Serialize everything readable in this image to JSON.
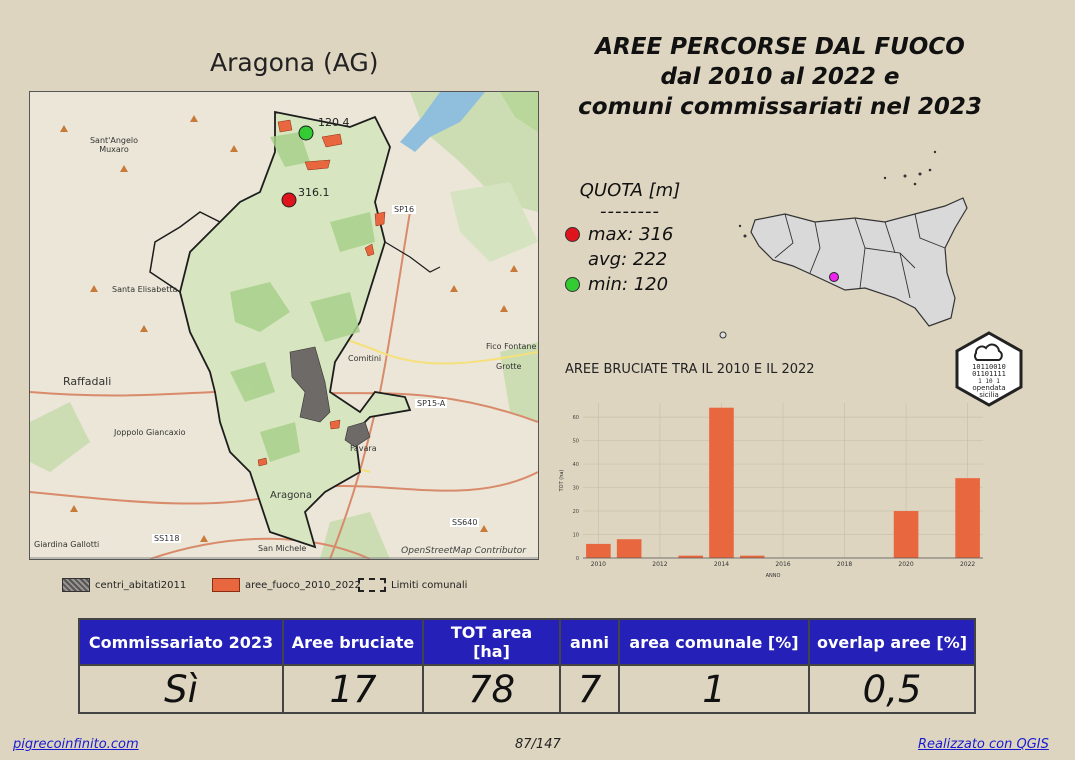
{
  "municipality_title": "Aragona (AG)",
  "main_title": [
    "AREE PERCORSE DAL FUOCO",
    "dal 2010 al 2022 e",
    "comuni commissariati nel 2023"
  ],
  "map": {
    "credit": "OpenStreetMap Contributor",
    "places": [
      "Sant'Angelo Muxaro",
      "Santa Elisabetta",
      "Raffadali",
      "Joppolo Giancaxio",
      "Aragona",
      "Comitini",
      "Favara",
      "Fico Fontane",
      "Grotte",
      "Giardina Gallotti",
      "San Michele"
    ],
    "roads": [
      "SP16",
      "SP15-A",
      "SS118",
      "SS640"
    ],
    "elevation_labels": {
      "max": "316.1",
      "min": "120.4"
    }
  },
  "legend": [
    {
      "label": "centri_abitati2011",
      "color": "#7a7470"
    },
    {
      "label": "aree_fuoco_2010_2022",
      "color": "#e9673f"
    },
    {
      "label": "Limiti comunali",
      "color": "#222222"
    }
  ],
  "quota": {
    "title": "QUOTA [m]",
    "separator": "--------",
    "rows": [
      {
        "label": "max: 316",
        "color": "#e0141c"
      },
      {
        "label": "avg: 222",
        "color": null
      },
      {
        "label": "min: 120",
        "color": "#33cc33"
      }
    ]
  },
  "inset_marker_color": "#ee22ee",
  "logo_text": [
    "opendata",
    "sicilia"
  ],
  "logo_bits": [
    "10110010",
    "01101111",
    "1 10 1"
  ],
  "chart_title": "AREE BRUCIATE TRA IL 2010 E IL 2022",
  "chart_data": {
    "type": "bar",
    "title": "AREE BRUCIATE TRA IL 2010 E IL 2022",
    "xlabel": "ANNO",
    "ylabel": "TOT (ha)",
    "x": [
      2010,
      2011,
      2012,
      2013,
      2014,
      2015,
      2016,
      2017,
      2018,
      2019,
      2020,
      2021,
      2022
    ],
    "values": [
      6,
      8,
      0,
      1,
      64,
      1,
      0,
      0,
      0,
      0,
      20,
      0,
      34
    ],
    "xticks": [
      2010,
      2012,
      2014,
      2016,
      2018,
      2020,
      2022
    ],
    "yticks": [
      0,
      10,
      20,
      30,
      40,
      50,
      60
    ],
    "ylim": [
      0,
      66
    ],
    "bar_color": "#e9673f",
    "grid": true
  },
  "table": {
    "headers": [
      "Commissariato 2023",
      "Aree bruciate",
      "TOT area [ha]",
      "anni",
      "area comunale [%]",
      "overlap aree [%]"
    ],
    "values": [
      "Sì",
      "17",
      "78",
      "7",
      "1",
      "0,5"
    ]
  },
  "footer": {
    "left": "pigrecoinfinito.com",
    "center": "87/147",
    "right": "Realizzato con QGIS"
  }
}
